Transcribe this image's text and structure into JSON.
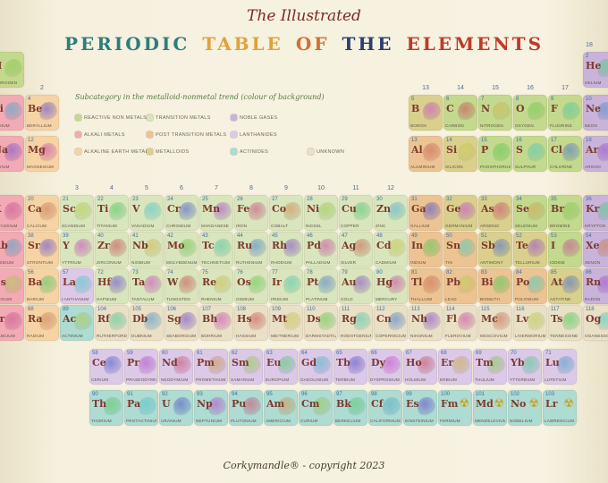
{
  "poster": {
    "script_title": "The Illustrated",
    "title_words": [
      {
        "text": "PERIODIC",
        "color": "#2e7d7c"
      },
      {
        "text": "TABLE",
        "color": "#dfa23a"
      },
      {
        "text": "OF",
        "color": "#d66e2f"
      },
      {
        "text": "THE",
        "color": "#2b3f6d"
      },
      {
        "text": "ELEMENTS",
        "color": "#bf3a2b"
      }
    ],
    "copyright": "Corkymandle® - copyright 2023"
  },
  "legend": {
    "heading": "Subcategory in the metalloid-nonmetal trend (colour of background)",
    "items": [
      {
        "label": "Reactive non metals",
        "key": "reactive",
        "col": 1,
        "row": 1
      },
      {
        "label": "Transition metals",
        "key": "transition",
        "col": 2,
        "row": 1
      },
      {
        "label": "Noble gases",
        "key": "noble",
        "col": 3,
        "row": 1
      },
      {
        "label": "Alkali metals",
        "key": "alkali",
        "col": 1,
        "row": 2
      },
      {
        "label": "Post transition metals",
        "key": "post",
        "col": 2,
        "row": 2
      },
      {
        "label": "Lanthanides",
        "key": "lan",
        "col": 3,
        "row": 2
      },
      {
        "label": "Alkaline Earth metals",
        "key": "alkaline",
        "col": 1,
        "row": 3
      },
      {
        "label": "Metalloids",
        "key": "metalloid",
        "col": 2,
        "row": 3
      },
      {
        "label": "Actinides",
        "key": "act",
        "col": 3,
        "row": 3
      },
      {
        "label": "Unknown",
        "key": "unknown",
        "col": 4,
        "row": 3
      }
    ]
  },
  "category_colors": {
    "reactive": "#c3d98e",
    "alkali": "#f2aab4",
    "alkaline": "#f6d3a4",
    "transition": "#d9e5bd",
    "post": "#ecc493",
    "metalloid": "#d9d08d",
    "noble": "#c9b3da",
    "lan": "#dcc9e8",
    "act": "#aedbd2",
    "unknown": "#e9e0c6"
  },
  "group_numbers": [
    {
      "label": "2",
      "col": 2,
      "row": 2
    },
    {
      "label": "3",
      "col": 3,
      "row": 4
    },
    {
      "label": "4",
      "col": 4,
      "row": 4
    },
    {
      "label": "5",
      "col": 5,
      "row": 4
    },
    {
      "label": "6",
      "col": 6,
      "row": 4
    },
    {
      "label": "7",
      "col": 7,
      "row": 4
    },
    {
      "label": "8",
      "col": 8,
      "row": 4
    },
    {
      "label": "9",
      "col": 9,
      "row": 4
    },
    {
      "label": "10",
      "col": 10,
      "row": 4
    },
    {
      "label": "11",
      "col": 11,
      "row": 4
    },
    {
      "label": "12",
      "col": 12,
      "row": 4
    },
    {
      "label": "13",
      "col": 13,
      "row": 2
    },
    {
      "label": "14",
      "col": 14,
      "row": 2
    },
    {
      "label": "15",
      "col": 15,
      "row": 2
    },
    {
      "label": "16",
      "col": 16,
      "row": 2
    },
    {
      "label": "17",
      "col": 17,
      "row": 2
    },
    {
      "label": "18",
      "col": 18,
      "row": 1
    }
  ],
  "elements": [
    {
      "n": 1,
      "sym": "H",
      "name": "Hydrogen",
      "cat": "reactive",
      "row": 1,
      "col": 1
    },
    {
      "n": 2,
      "sym": "He",
      "name": "Helium",
      "cat": "noble",
      "row": 1,
      "col": 18
    },
    {
      "n": 3,
      "sym": "Li",
      "name": "Lithium",
      "cat": "alkali",
      "row": 2,
      "col": 1
    },
    {
      "n": 4,
      "sym": "Be",
      "name": "Beryllium",
      "cat": "alkaline",
      "row": 2,
      "col": 2
    },
    {
      "n": 5,
      "sym": "B",
      "name": "Boron",
      "cat": "metalloid",
      "row": 2,
      "col": 13
    },
    {
      "n": 6,
      "sym": "C",
      "name": "Carbon",
      "cat": "reactive",
      "row": 2,
      "col": 14
    },
    {
      "n": 7,
      "sym": "N",
      "name": "Nitrogen",
      "cat": "reactive",
      "row": 2,
      "col": 15
    },
    {
      "n": 8,
      "sym": "O",
      "name": "Oxygen",
      "cat": "reactive",
      "row": 2,
      "col": 16
    },
    {
      "n": 9,
      "sym": "F",
      "name": "Fluorine",
      "cat": "reactive",
      "row": 2,
      "col": 17
    },
    {
      "n": 10,
      "sym": "Ne",
      "name": "Neon",
      "cat": "noble",
      "row": 2,
      "col": 18
    },
    {
      "n": 11,
      "sym": "Na",
      "name": "Sodium",
      "cat": "alkali",
      "row": 3,
      "col": 1
    },
    {
      "n": 12,
      "sym": "Mg",
      "name": "Magnesium",
      "cat": "alkaline",
      "row": 3,
      "col": 2
    },
    {
      "n": 13,
      "sym": "Al",
      "name": "Aluminium",
      "cat": "post",
      "row": 3,
      "col": 13
    },
    {
      "n": 14,
      "sym": "Si",
      "name": "Silicon",
      "cat": "metalloid",
      "row": 3,
      "col": 14
    },
    {
      "n": 15,
      "sym": "P",
      "name": "Phosphorus",
      "cat": "reactive",
      "row": 3,
      "col": 15
    },
    {
      "n": 16,
      "sym": "S",
      "name": "Sulphur",
      "cat": "reactive",
      "row": 3,
      "col": 16
    },
    {
      "n": 17,
      "sym": "Cl",
      "name": "Chlorine",
      "cat": "reactive",
      "row": 3,
      "col": 17
    },
    {
      "n": 18,
      "sym": "Ar",
      "name": "Argon",
      "cat": "noble",
      "row": 3,
      "col": 18
    },
    {
      "n": 19,
      "sym": "K",
      "name": "Potassium",
      "cat": "alkali",
      "row": 4,
      "col": 1
    },
    {
      "n": 20,
      "sym": "Ca",
      "name": "Calcium",
      "cat": "alkaline",
      "row": 4,
      "col": 2
    },
    {
      "n": 21,
      "sym": "Sc",
      "name": "Scandium",
      "cat": "transition",
      "row": 4,
      "col": 3
    },
    {
      "n": 22,
      "sym": "Ti",
      "name": "Titanium",
      "cat": "transition",
      "row": 4,
      "col": 4
    },
    {
      "n": 23,
      "sym": "V",
      "name": "Vanadium",
      "cat": "transition",
      "row": 4,
      "col": 5
    },
    {
      "n": 24,
      "sym": "Cr",
      "name": "Chromium",
      "cat": "transition",
      "row": 4,
      "col": 6
    },
    {
      "n": 25,
      "sym": "Mn",
      "name": "Manganese",
      "cat": "transition",
      "row": 4,
      "col": 7
    },
    {
      "n": 26,
      "sym": "Fe",
      "name": "Iron",
      "cat": "transition",
      "row": 4,
      "col": 8
    },
    {
      "n": 27,
      "sym": "Co",
      "name": "Cobalt",
      "cat": "transition",
      "row": 4,
      "col": 9
    },
    {
      "n": 28,
      "sym": "Ni",
      "name": "Nickel",
      "cat": "transition",
      "row": 4,
      "col": 10
    },
    {
      "n": 29,
      "sym": "Cu",
      "name": "Copper",
      "cat": "transition",
      "row": 4,
      "col": 11
    },
    {
      "n": 30,
      "sym": "Zn",
      "name": "Zinc",
      "cat": "transition",
      "row": 4,
      "col": 12
    },
    {
      "n": 31,
      "sym": "Ga",
      "name": "Gallium",
      "cat": "post",
      "row": 4,
      "col": 13
    },
    {
      "n": 32,
      "sym": "Ge",
      "name": "Germanium",
      "cat": "metalloid",
      "row": 4,
      "col": 14
    },
    {
      "n": 33,
      "sym": "As",
      "name": "Arsenic",
      "cat": "metalloid",
      "row": 4,
      "col": 15
    },
    {
      "n": 34,
      "sym": "Se",
      "name": "Selenium",
      "cat": "reactive",
      "row": 4,
      "col": 16
    },
    {
      "n": 35,
      "sym": "Br",
      "name": "Bromine",
      "cat": "reactive",
      "row": 4,
      "col": 17
    },
    {
      "n": 36,
      "sym": "Kr",
      "name": "Krypton",
      "cat": "noble",
      "row": 4,
      "col": 18
    },
    {
      "n": 37,
      "sym": "Rb",
      "name": "Rubidium",
      "cat": "alkali",
      "row": 5,
      "col": 1
    },
    {
      "n": 38,
      "sym": "Sr",
      "name": "Strontium",
      "cat": "alkaline",
      "row": 5,
      "col": 2
    },
    {
      "n": 39,
      "sym": "Y",
      "name": "Yttrium",
      "cat": "transition",
      "row": 5,
      "col": 3
    },
    {
      "n": 40,
      "sym": "Zr",
      "name": "Zirconium",
      "cat": "transition",
      "row": 5,
      "col": 4
    },
    {
      "n": 41,
      "sym": "Nb",
      "name": "Niobium",
      "cat": "transition",
      "row": 5,
      "col": 5
    },
    {
      "n": 42,
      "sym": "Mo",
      "name": "Molybdenum",
      "cat": "transition",
      "row": 5,
      "col": 6
    },
    {
      "n": 43,
      "sym": "Tc",
      "name": "Technetium",
      "cat": "transition",
      "row": 5,
      "col": 7
    },
    {
      "n": 44,
      "sym": "Ru",
      "name": "Ruthenium",
      "cat": "transition",
      "row": 5,
      "col": 8
    },
    {
      "n": 45,
      "sym": "Rh",
      "name": "Rhodium",
      "cat": "transition",
      "row": 5,
      "col": 9
    },
    {
      "n": 46,
      "sym": "Pd",
      "name": "Palladium",
      "cat": "transition",
      "row": 5,
      "col": 10
    },
    {
      "n": 47,
      "sym": "Ag",
      "name": "Silver",
      "cat": "transition",
      "row": 5,
      "col": 11
    },
    {
      "n": 48,
      "sym": "Cd",
      "name": "Cadmium",
      "cat": "transition",
      "row": 5,
      "col": 12
    },
    {
      "n": 49,
      "sym": "In",
      "name": "Indium",
      "cat": "post",
      "row": 5,
      "col": 13
    },
    {
      "n": 50,
      "sym": "Sn",
      "name": "Tin",
      "cat": "post",
      "row": 5,
      "col": 14
    },
    {
      "n": 51,
      "sym": "Sb",
      "name": "Antimony",
      "cat": "metalloid",
      "row": 5,
      "col": 15
    },
    {
      "n": 52,
      "sym": "Te",
      "name": "Tellurium",
      "cat": "metalloid",
      "row": 5,
      "col": 16
    },
    {
      "n": 53,
      "sym": "I",
      "name": "Iodine",
      "cat": "reactive",
      "row": 5,
      "col": 17
    },
    {
      "n": 54,
      "sym": "Xe",
      "name": "Xenon",
      "cat": "noble",
      "row": 5,
      "col": 18
    },
    {
      "n": 55,
      "sym": "Cs",
      "name": "Caesium",
      "cat": "alkali",
      "row": 6,
      "col": 1
    },
    {
      "n": 56,
      "sym": "Ba",
      "name": "Barium",
      "cat": "alkaline",
      "row": 6,
      "col": 2
    },
    {
      "n": 57,
      "sym": "La",
      "name": "Lanthanum",
      "cat": "lan",
      "row": 6,
      "col": 3
    },
    {
      "n": 72,
      "sym": "Hf",
      "name": "Hafnium",
      "cat": "transition",
      "row": 6,
      "col": 4
    },
    {
      "n": 73,
      "sym": "Ta",
      "name": "Tantalum",
      "cat": "transition",
      "row": 6,
      "col": 5
    },
    {
      "n": 74,
      "sym": "W",
      "name": "Tungsten",
      "cat": "transition",
      "row": 6,
      "col": 6
    },
    {
      "n": 75,
      "sym": "Re",
      "name": "Rhenium",
      "cat": "transition",
      "row": 6,
      "col": 7
    },
    {
      "n": 76,
      "sym": "Os",
      "name": "Osmium",
      "cat": "transition",
      "row": 6,
      "col": 8
    },
    {
      "n": 77,
      "sym": "Ir",
      "name": "Iridium",
      "cat": "transition",
      "row": 6,
      "col": 9
    },
    {
      "n": 78,
      "sym": "Pt",
      "name": "Platinum",
      "cat": "transition",
      "row": 6,
      "col": 10
    },
    {
      "n": 79,
      "sym": "Au",
      "name": "Gold",
      "cat": "transition",
      "row": 6,
      "col": 11
    },
    {
      "n": 80,
      "sym": "Hg",
      "name": "Mercury",
      "cat": "transition",
      "row": 6,
      "col": 12
    },
    {
      "n": 81,
      "sym": "Tl",
      "name": "Thallium",
      "cat": "post",
      "row": 6,
      "col": 13
    },
    {
      "n": 82,
      "sym": "Pb",
      "name": "Lead",
      "cat": "post",
      "row": 6,
      "col": 14
    },
    {
      "n": 83,
      "sym": "Bi",
      "name": "Bismuth",
      "cat": "post",
      "row": 6,
      "col": 15
    },
    {
      "n": 84,
      "sym": "Po",
      "name": "Polonium",
      "cat": "post",
      "row": 6,
      "col": 16
    },
    {
      "n": 85,
      "sym": "At",
      "name": "Astatine",
      "cat": "metalloid",
      "row": 6,
      "col": 17
    },
    {
      "n": 86,
      "sym": "Rn",
      "name": "Radon",
      "cat": "noble",
      "row": 6,
      "col": 18
    },
    {
      "n": 87,
      "sym": "Fr",
      "name": "Francium",
      "cat": "alkali",
      "row": 7,
      "col": 1
    },
    {
      "n": 88,
      "sym": "Ra",
      "name": "Radium",
      "cat": "alkaline",
      "row": 7,
      "col": 2
    },
    {
      "n": 89,
      "sym": "Ac",
      "name": "Actinium",
      "cat": "act",
      "row": 7,
      "col": 3
    },
    {
      "n": 104,
      "sym": "Rf",
      "name": "Rutherfordium",
      "cat": "unknown",
      "row": 7,
      "col": 4
    },
    {
      "n": 105,
      "sym": "Db",
      "name": "Dubnium",
      "cat": "unknown",
      "row": 7,
      "col": 5
    },
    {
      "n": 106,
      "sym": "Sg",
      "name": "Seaborgium",
      "cat": "unknown",
      "row": 7,
      "col": 6
    },
    {
      "n": 107,
      "sym": "Bh",
      "name": "Bohrium",
      "cat": "unknown",
      "row": 7,
      "col": 7
    },
    {
      "n": 108,
      "sym": "Hs",
      "name": "Hassium",
      "cat": "unknown",
      "row": 7,
      "col": 8
    },
    {
      "n": 109,
      "sym": "Mt",
      "name": "Meitnerium",
      "cat": "unknown",
      "row": 7,
      "col": 9
    },
    {
      "n": 110,
      "sym": "Ds",
      "name": "Darmstadtium",
      "cat": "unknown",
      "row": 7,
      "col": 10
    },
    {
      "n": 111,
      "sym": "Rg",
      "name": "Roentgenium",
      "cat": "unknown",
      "row": 7,
      "col": 11
    },
    {
      "n": 112,
      "sym": "Cn",
      "name": "Copernicium",
      "cat": "unknown",
      "row": 7,
      "col": 12
    },
    {
      "n": 113,
      "sym": "Nh",
      "name": "Nihonium",
      "cat": "unknown",
      "row": 7,
      "col": 13
    },
    {
      "n": 114,
      "sym": "Fl",
      "name": "Flerovium",
      "cat": "unknown",
      "row": 7,
      "col": 14
    },
    {
      "n": 115,
      "sym": "Mc",
      "name": "Moscovium",
      "cat": "unknown",
      "row": 7,
      "col": 15
    },
    {
      "n": 116,
      "sym": "Lv",
      "name": "Livermorium",
      "cat": "unknown",
      "row": 7,
      "col": 16
    },
    {
      "n": 117,
      "sym": "Ts",
      "name": "Tennessine",
      "cat": "unknown",
      "row": 7,
      "col": 17
    },
    {
      "n": 118,
      "sym": "Og",
      "name": "Oganesson",
      "cat": "unknown",
      "row": 7,
      "col": 18
    },
    {
      "n": 58,
      "sym": "Ce",
      "name": "Cerium",
      "cat": "lan",
      "row": "L",
      "col": 1
    },
    {
      "n": 59,
      "sym": "Pr",
      "name": "Praseodymium",
      "cat": "lan",
      "row": "L",
      "col": 2
    },
    {
      "n": 60,
      "sym": "Nd",
      "name": "Neodymium",
      "cat": "lan",
      "row": "L",
      "col": 3
    },
    {
      "n": 61,
      "sym": "Pm",
      "name": "Promethium",
      "cat": "lan",
      "row": "L",
      "col": 4
    },
    {
      "n": 62,
      "sym": "Sm",
      "name": "Samarium",
      "cat": "lan",
      "row": "L",
      "col": 5
    },
    {
      "n": 63,
      "sym": "Eu",
      "name": "Europium",
      "cat": "lan",
      "row": "L",
      "col": 6
    },
    {
      "n": 64,
      "sym": "Gd",
      "name": "Gadolinium",
      "cat": "lan",
      "row": "L",
      "col": 7
    },
    {
      "n": 65,
      "sym": "Tb",
      "name": "Terbium",
      "cat": "lan",
      "row": "L",
      "col": 8
    },
    {
      "n": 66,
      "sym": "Dy",
      "name": "Dysprosium",
      "cat": "lan",
      "row": "L",
      "col": 9
    },
    {
      "n": 67,
      "sym": "Ho",
      "name": "Holmium",
      "cat": "lan",
      "row": "L",
      "col": 10
    },
    {
      "n": 68,
      "sym": "Er",
      "name": "Erbium",
      "cat": "lan",
      "row": "L",
      "col": 11
    },
    {
      "n": 69,
      "sym": "Tm",
      "name": "Thulium",
      "cat": "lan",
      "row": "L",
      "col": 12
    },
    {
      "n": 70,
      "sym": "Yb",
      "name": "Ytterbium",
      "cat": "lan",
      "row": "L",
      "col": 13
    },
    {
      "n": 71,
      "sym": "Lu",
      "name": "Lutetium",
      "cat": "lan",
      "row": "L",
      "col": 14
    },
    {
      "n": 90,
      "sym": "Th",
      "name": "Thorium",
      "cat": "act",
      "row": "A",
      "col": 1
    },
    {
      "n": 91,
      "sym": "Pa",
      "name": "Protactinium",
      "cat": "act",
      "row": "A",
      "col": 2
    },
    {
      "n": 92,
      "sym": "U",
      "name": "Uranium",
      "cat": "act",
      "row": "A",
      "col": 3
    },
    {
      "n": 93,
      "sym": "Np",
      "name": "Neptunium",
      "cat": "act",
      "row": "A",
      "col": 4
    },
    {
      "n": 94,
      "sym": "Pu",
      "name": "Plutonium",
      "cat": "act",
      "row": "A",
      "col": 5
    },
    {
      "n": 95,
      "sym": "Am",
      "name": "Americium",
      "cat": "act",
      "row": "A",
      "col": 6
    },
    {
      "n": 96,
      "sym": "Cm",
      "name": "Curium",
      "cat": "act",
      "row": "A",
      "col": 7
    },
    {
      "n": 97,
      "sym": "Bk",
      "name": "Berkelium",
      "cat": "act",
      "row": "A",
      "col": 8
    },
    {
      "n": 98,
      "sym": "Cf",
      "name": "Californium",
      "cat": "act",
      "row": "A",
      "col": 9
    },
    {
      "n": 99,
      "sym": "Es",
      "name": "Einsteinium",
      "cat": "act",
      "row": "A",
      "col": 10
    },
    {
      "n": 100,
      "sym": "Fm",
      "name": "Fermium",
      "cat": "act",
      "row": "A",
      "col": 11,
      "glyph": "☢"
    },
    {
      "n": 101,
      "sym": "Md",
      "name": "Mendelevium",
      "cat": "act",
      "row": "A",
      "col": 12,
      "glyph": "☢"
    },
    {
      "n": 102,
      "sym": "No",
      "name": "Nobelium",
      "cat": "act",
      "row": "A",
      "col": 13,
      "glyph": "☢"
    },
    {
      "n": 103,
      "sym": "Lr",
      "name": "Lawrencium",
      "cat": "act",
      "row": "A",
      "col": 14,
      "glyph": "☢"
    }
  ]
}
